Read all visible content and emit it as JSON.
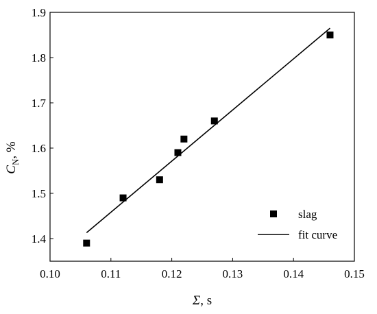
{
  "chart_data": {
    "type": "scatter",
    "xlim": [
      0.1,
      0.15
    ],
    "ylim": [
      1.35,
      1.9
    ],
    "x_ticks": [
      "0.10",
      "0.11",
      "0.12",
      "0.13",
      "0.14",
      "0.15"
    ],
    "y_ticks": [
      "1.4",
      "1.5",
      "1.6",
      "1.7",
      "1.8",
      "1.9"
    ],
    "xlabel": {
      "symbol": "Σ",
      "unit": ", s"
    },
    "ylabel": {
      "symbol": "C",
      "subscript": "N",
      "unit": ", %"
    },
    "grid": false,
    "legend_position": "bottom-right",
    "series": [
      {
        "name": "slag",
        "marker": "square",
        "color": "#000000",
        "points": [
          {
            "x": 0.106,
            "y": 1.39
          },
          {
            "x": 0.112,
            "y": 1.49
          },
          {
            "x": 0.118,
            "y": 1.53
          },
          {
            "x": 0.121,
            "y": 1.59
          },
          {
            "x": 0.122,
            "y": 1.62
          },
          {
            "x": 0.127,
            "y": 1.66
          },
          {
            "x": 0.146,
            "y": 1.85
          }
        ]
      },
      {
        "name": "fit curve",
        "line": "solid",
        "color": "#000000",
        "points": [
          {
            "x": 0.106,
            "y": 1.413
          },
          {
            "x": 0.146,
            "y": 1.865
          }
        ]
      }
    ]
  }
}
